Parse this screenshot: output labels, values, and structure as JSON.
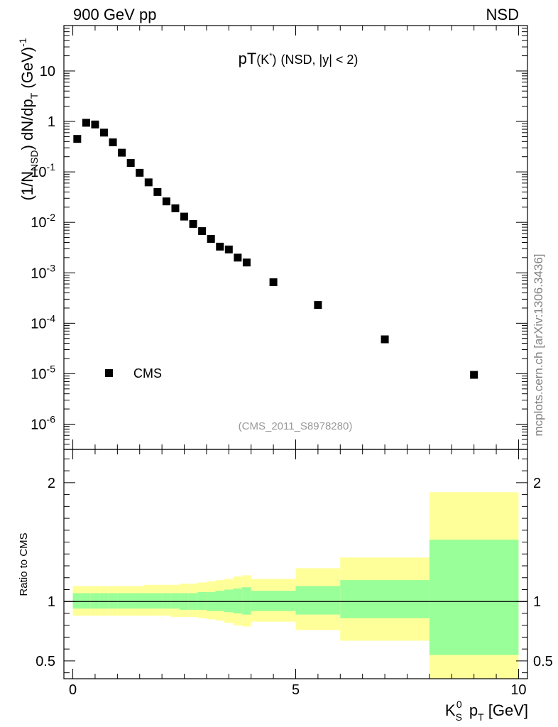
{
  "header": {
    "left": "900 GeV pp",
    "right": "NSD"
  },
  "watermark": "mcplots.cern.ch [arXiv:1306.3436]",
  "analysis_tag": "(CMS_2011_S8978280)",
  "plot_title": {
    "main": "pT",
    "particle": "(K",
    "particle_sup": "*",
    "particle_close": ")",
    "cuts": "(NSD, |y| < 2)"
  },
  "legend": {
    "entries": [
      {
        "label": "CMS",
        "marker": "filled-square",
        "color": "#000000"
      }
    ]
  },
  "colors": {
    "band_outer": "#ffff99",
    "band_inner": "#99ff99",
    "marker": "#000000",
    "ratio_line": "#000000"
  },
  "chart_data": [
    {
      "type": "scatter",
      "title": "pT(K*) (NSD, |y| < 2)",
      "xlabel": "K_S^0 p_T [GeV]",
      "ylabel": "(1/N_NSD) dN/dp_T (GeV)^-1",
      "yscale": "log",
      "xlim": [
        -0.2,
        10.2
      ],
      "ylim_log10": [
        -6.5,
        1.9
      ],
      "ytick_labels": [
        {
          "base": "10",
          "exp": "-6",
          "value": 1e-06
        },
        {
          "base": "10",
          "exp": "-5",
          "value": 1e-05
        },
        {
          "base": "10",
          "exp": "-4",
          "value": 0.0001
        },
        {
          "base": "10",
          "exp": "-3",
          "value": 0.001
        },
        {
          "base": "10",
          "exp": "-2",
          "value": 0.01
        },
        {
          "base": "10",
          "exp": "-1",
          "value": 0.1
        },
        {
          "base": "1",
          "exp": "",
          "value": 1
        },
        {
          "base": "10",
          "exp": "",
          "value": 10
        }
      ],
      "series": [
        {
          "name": "CMS",
          "x": [
            0.1,
            0.3,
            0.5,
            0.7,
            0.9,
            1.1,
            1.3,
            1.5,
            1.7,
            1.9,
            2.1,
            2.3,
            2.5,
            2.7,
            2.9,
            3.1,
            3.3,
            3.5,
            3.7,
            3.9,
            4.5,
            5.5,
            7.0,
            9.0
          ],
          "y": [
            0.45,
            0.94,
            0.87,
            0.6,
            0.385,
            0.24,
            0.15,
            0.096,
            0.062,
            0.04,
            0.026,
            0.019,
            0.013,
            0.0093,
            0.0067,
            0.0047,
            0.0033,
            0.0029,
            0.002,
            0.0016,
            0.00065,
            0.00023,
            4.8e-05,
            9.5e-06
          ]
        }
      ]
    },
    {
      "type": "area",
      "ylabel": "Ratio to CMS",
      "xlabel": "K_S^0 p_T [GeV]",
      "xlim": [
        -0.2,
        10.2
      ],
      "ylim": [
        0.35,
        2.28
      ],
      "yticks": [
        0.5,
        1,
        2
      ],
      "ytick_labels": [
        "0.5",
        "1",
        "2"
      ],
      "xticks": [
        0,
        5,
        10
      ],
      "xtick_labels": [
        "0",
        "5",
        "10"
      ],
      "reference_line": 1.0,
      "bins": [
        {
          "lo": 0.0,
          "hi": 0.2,
          "stat_lo": 0.94,
          "stat_hi": 1.07,
          "tot_lo": 0.88,
          "tot_hi": 1.13
        },
        {
          "lo": 0.2,
          "hi": 0.4,
          "stat_lo": 0.94,
          "stat_hi": 1.07,
          "tot_lo": 0.88,
          "tot_hi": 1.13
        },
        {
          "lo": 0.4,
          "hi": 0.6,
          "stat_lo": 0.94,
          "stat_hi": 1.07,
          "tot_lo": 0.88,
          "tot_hi": 1.13
        },
        {
          "lo": 0.6,
          "hi": 0.8,
          "stat_lo": 0.94,
          "stat_hi": 1.07,
          "tot_lo": 0.88,
          "tot_hi": 1.13
        },
        {
          "lo": 0.8,
          "hi": 1.0,
          "stat_lo": 0.94,
          "stat_hi": 1.07,
          "tot_lo": 0.88,
          "tot_hi": 1.13
        },
        {
          "lo": 1.0,
          "hi": 1.2,
          "stat_lo": 0.94,
          "stat_hi": 1.07,
          "tot_lo": 0.88,
          "tot_hi": 1.13
        },
        {
          "lo": 1.2,
          "hi": 1.4,
          "stat_lo": 0.94,
          "stat_hi": 1.07,
          "tot_lo": 0.88,
          "tot_hi": 1.13
        },
        {
          "lo": 1.4,
          "hi": 1.6,
          "stat_lo": 0.94,
          "stat_hi": 1.07,
          "tot_lo": 0.88,
          "tot_hi": 1.13
        },
        {
          "lo": 1.6,
          "hi": 1.8,
          "stat_lo": 0.94,
          "stat_hi": 1.07,
          "tot_lo": 0.88,
          "tot_hi": 1.14
        },
        {
          "lo": 1.8,
          "hi": 2.0,
          "stat_lo": 0.94,
          "stat_hi": 1.07,
          "tot_lo": 0.88,
          "tot_hi": 1.14
        },
        {
          "lo": 2.0,
          "hi": 2.2,
          "stat_lo": 0.94,
          "stat_hi": 1.07,
          "tot_lo": 0.88,
          "tot_hi": 1.14
        },
        {
          "lo": 2.2,
          "hi": 2.4,
          "stat_lo": 0.94,
          "stat_hi": 1.07,
          "tot_lo": 0.87,
          "tot_hi": 1.14
        },
        {
          "lo": 2.4,
          "hi": 2.6,
          "stat_lo": 0.93,
          "stat_hi": 1.07,
          "tot_lo": 0.87,
          "tot_hi": 1.15
        },
        {
          "lo": 2.6,
          "hi": 2.8,
          "stat_lo": 0.93,
          "stat_hi": 1.07,
          "tot_lo": 0.87,
          "tot_hi": 1.15
        },
        {
          "lo": 2.8,
          "hi": 3.0,
          "stat_lo": 0.93,
          "stat_hi": 1.08,
          "tot_lo": 0.86,
          "tot_hi": 1.16
        },
        {
          "lo": 3.0,
          "hi": 3.2,
          "stat_lo": 0.92,
          "stat_hi": 1.08,
          "tot_lo": 0.85,
          "tot_hi": 1.17
        },
        {
          "lo": 3.2,
          "hi": 3.4,
          "stat_lo": 0.92,
          "stat_hi": 1.09,
          "tot_lo": 0.84,
          "tot_hi": 1.18
        },
        {
          "lo": 3.4,
          "hi": 3.6,
          "stat_lo": 0.91,
          "stat_hi": 1.1,
          "tot_lo": 0.82,
          "tot_hi": 1.19
        },
        {
          "lo": 3.6,
          "hi": 3.8,
          "stat_lo": 0.9,
          "stat_hi": 1.11,
          "tot_lo": 0.8,
          "tot_hi": 1.21
        },
        {
          "lo": 3.8,
          "hi": 4.0,
          "stat_lo": 0.89,
          "stat_hi": 1.12,
          "tot_lo": 0.79,
          "tot_hi": 1.22
        },
        {
          "lo": 4.0,
          "hi": 5.0,
          "stat_lo": 0.92,
          "stat_hi": 1.09,
          "tot_lo": 0.83,
          "tot_hi": 1.19
        },
        {
          "lo": 5.0,
          "hi": 6.0,
          "stat_lo": 0.89,
          "stat_hi": 1.13,
          "tot_lo": 0.76,
          "tot_hi": 1.28
        },
        {
          "lo": 6.0,
          "hi": 8.0,
          "stat_lo": 0.86,
          "stat_hi": 1.18,
          "tot_lo": 0.67,
          "tot_hi": 1.37
        },
        {
          "lo": 8.0,
          "hi": 10.0,
          "stat_lo": 0.55,
          "stat_hi": 1.52,
          "tot_lo": 0.35,
          "tot_hi": 1.92
        }
      ]
    }
  ]
}
